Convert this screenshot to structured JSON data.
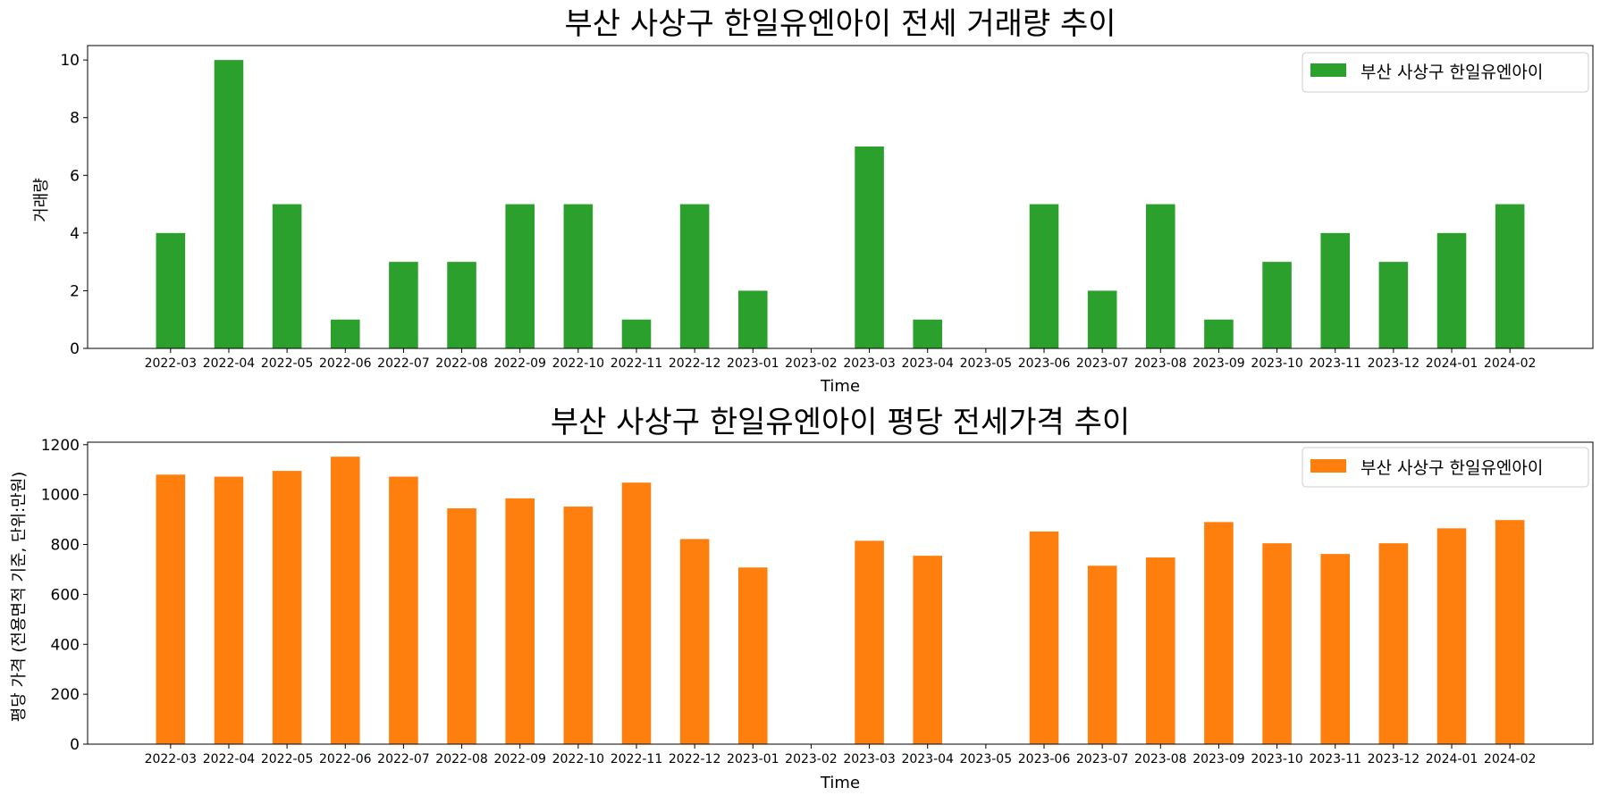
{
  "chart_data": [
    {
      "type": "bar",
      "title": "부산 사상구 한일유엔아이 전세 거래량 추이",
      "xlabel": "Time",
      "ylabel": "거래량",
      "categories": [
        "2022-03",
        "2022-04",
        "2022-05",
        "2022-06",
        "2022-07",
        "2022-08",
        "2022-09",
        "2022-10",
        "2022-11",
        "2022-12",
        "2023-01",
        "2023-02",
        "2023-03",
        "2023-04",
        "2023-05",
        "2023-06",
        "2023-07",
        "2023-08",
        "2023-09",
        "2023-10",
        "2023-11",
        "2023-12",
        "2024-01",
        "2024-02"
      ],
      "series": [
        {
          "name": "부산 사상구 한일유엔아이",
          "color": "#2ca02c",
          "values": [
            4,
            10,
            5,
            1,
            3,
            3,
            5,
            5,
            1,
            5,
            2,
            0,
            7,
            1,
            0,
            5,
            2,
            5,
            1,
            3,
            4,
            3,
            4,
            5
          ]
        }
      ],
      "yticks": [
        0,
        2,
        4,
        6,
        8,
        10
      ],
      "ylim": [
        0,
        10.5
      ],
      "legend": "top-right",
      "grid": false
    },
    {
      "type": "bar",
      "title": "부산 사상구 한일유엔아이 평당 전세가격 추이",
      "xlabel": "Time",
      "ylabel": "평당 가격 (전용면적 기준, 단위:만원)",
      "categories": [
        "2022-03",
        "2022-04",
        "2022-05",
        "2022-06",
        "2022-07",
        "2022-08",
        "2022-09",
        "2022-10",
        "2022-11",
        "2022-12",
        "2023-01",
        "2023-02",
        "2023-03",
        "2023-04",
        "2023-05",
        "2023-06",
        "2023-07",
        "2023-08",
        "2023-09",
        "2023-10",
        "2023-11",
        "2023-12",
        "2024-01",
        "2024-02"
      ],
      "series": [
        {
          "name": "부산 사상구 한일유엔아이",
          "color": "#ff7f0e",
          "values": [
            1080,
            1072,
            1095,
            1152,
            1072,
            945,
            985,
            952,
            1048,
            822,
            708,
            0,
            815,
            755,
            0,
            852,
            715,
            748,
            890,
            805,
            762,
            805,
            865,
            898
          ]
        }
      ],
      "yticks": [
        0,
        200,
        400,
        600,
        800,
        1000,
        1200
      ],
      "ylim": [
        0,
        1210
      ],
      "legend": "top-right",
      "grid": false
    }
  ]
}
